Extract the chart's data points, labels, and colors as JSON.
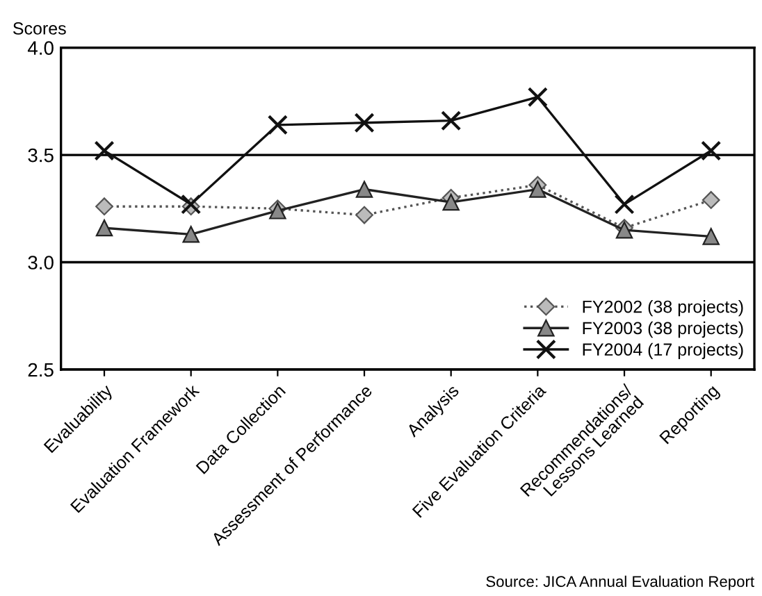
{
  "chart_data": {
    "type": "line",
    "ylabel": "Scores",
    "categories": [
      "Evaluability",
      "Evaluation Framework",
      "Data Collection",
      "Assessment of Performance",
      "Analysis",
      "Five Evaluation Criteria",
      "Recommendations/\nLessons Learned",
      "Reporting"
    ],
    "series": [
      {
        "name": "FY2002 (38 projects)",
        "color": "#555555",
        "marker": "diamond",
        "line_style": "dotted",
        "values": [
          3.26,
          3.26,
          3.25,
          3.22,
          3.3,
          3.36,
          3.16,
          3.29
        ]
      },
      {
        "name": "FY2003 (38 projects)",
        "color": "#222222",
        "marker": "triangle",
        "line_style": "solid",
        "values": [
          3.16,
          3.13,
          3.24,
          3.34,
          3.28,
          3.34,
          3.15,
          3.12
        ]
      },
      {
        "name": "FY2004 (17 projects)",
        "color": "#111111",
        "marker": "cross",
        "line_style": "solid",
        "values": [
          3.52,
          3.27,
          3.64,
          3.65,
          3.66,
          3.77,
          3.27,
          3.52
        ]
      }
    ],
    "ylim": [
      2.5,
      4.0
    ],
    "yticks": [
      2.5,
      {
        "value": 3.0,
        "label": "3.0"
      },
      3.5,
      {
        "value": 4.0,
        "label": "4.0"
      }
    ],
    "grid": "y",
    "legend": "bottom right",
    "annotations": [
      "Source: JICA Annual Evaluation Report"
    ]
  }
}
